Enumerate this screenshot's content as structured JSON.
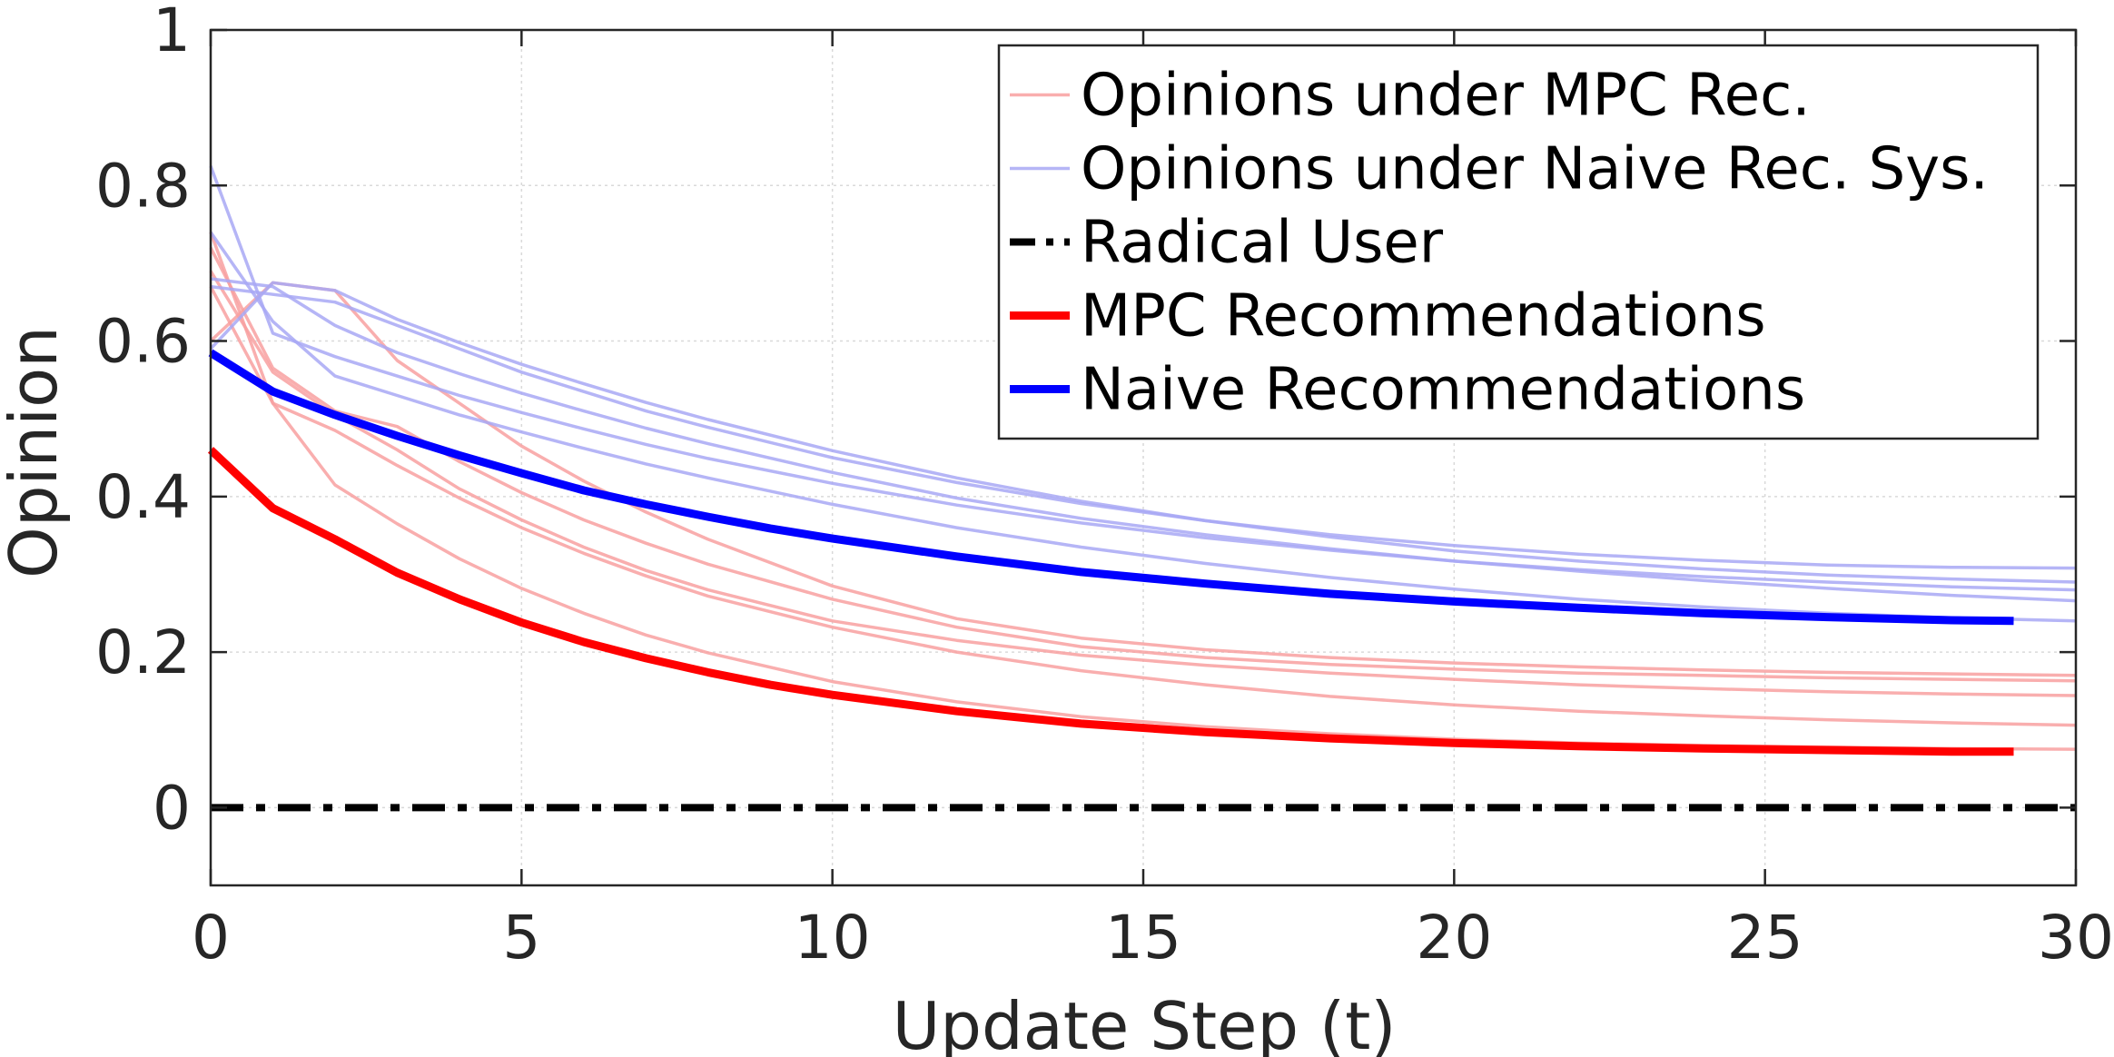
{
  "chart_data": {
    "type": "line",
    "title": "",
    "xlabel": "Update Step (t)",
    "ylabel": "Opinion",
    "xlim": [
      0,
      30
    ],
    "ylim": [
      -0.1,
      1.0
    ],
    "xticks": [
      0,
      5,
      10,
      15,
      20,
      25,
      30
    ],
    "yticks": [
      0,
      0.2,
      0.4,
      0.6,
      0.8,
      1
    ],
    "xtick_labels": [
      "0",
      "5",
      "10",
      "15",
      "20",
      "25",
      "30"
    ],
    "ytick_labels": [
      "0",
      "0.2",
      "0.4",
      "0.6",
      "0.8",
      "1"
    ],
    "grid": true,
    "legend_position": "top-right",
    "legend": [
      {
        "label": "Opinions under MPC Rec.",
        "color": "#f8a0a0",
        "style": "thin"
      },
      {
        "label": "Opinions under Naive Rec. Sys.",
        "color": "#a8a8f4",
        "style": "thin"
      },
      {
        "label": "Radical User",
        "color": "#000000",
        "style": "dashdot"
      },
      {
        "label": "MPC Recommendations",
        "color": "#ff0000",
        "style": "thick"
      },
      {
        "label": "Naive Recommendations",
        "color": "#0000ff",
        "style": "thick"
      }
    ],
    "radical_user": {
      "value": 0,
      "x_range": [
        0,
        30
      ],
      "color": "#000000"
    },
    "mpc_recommendations": {
      "color": "#ff0000",
      "x": [
        0,
        1,
        2,
        3,
        4,
        5,
        6,
        7,
        8,
        9,
        10,
        12,
        14,
        16,
        18,
        20,
        22,
        24,
        26,
        28,
        29
      ],
      "y": [
        0.46,
        0.385,
        0.345,
        0.302,
        0.268,
        0.238,
        0.213,
        0.192,
        0.174,
        0.158,
        0.145,
        0.124,
        0.108,
        0.097,
        0.089,
        0.083,
        0.079,
        0.076,
        0.074,
        0.072,
        0.072
      ]
    },
    "naive_recommendations": {
      "color": "#0000ff",
      "x": [
        0,
        1,
        2,
        3,
        4,
        5,
        6,
        7,
        8,
        9,
        10,
        12,
        14,
        16,
        18,
        20,
        22,
        24,
        26,
        28,
        29
      ],
      "y": [
        0.585,
        0.535,
        0.505,
        0.478,
        0.453,
        0.43,
        0.408,
        0.39,
        0.374,
        0.359,
        0.346,
        0.323,
        0.303,
        0.288,
        0.275,
        0.265,
        0.257,
        0.25,
        0.245,
        0.241,
        0.24
      ]
    },
    "mpc_opinions": {
      "color": "#f8a0a0",
      "x": [
        0,
        1,
        2,
        3,
        4,
        5,
        6,
        7,
        8,
        10,
        12,
        14,
        16,
        18,
        20,
        22,
        24,
        26,
        28,
        30
      ],
      "series": [
        [
          0.74,
          0.52,
          0.415,
          0.365,
          0.32,
          0.282,
          0.25,
          0.222,
          0.199,
          0.162,
          0.136,
          0.117,
          0.104,
          0.095,
          0.088,
          0.083,
          0.08,
          0.078,
          0.076,
          0.075
        ],
        [
          0.67,
          0.52,
          0.485,
          0.44,
          0.398,
          0.36,
          0.327,
          0.298,
          0.272,
          0.232,
          0.2,
          0.176,
          0.158,
          0.143,
          0.132,
          0.124,
          0.118,
          0.113,
          0.109,
          0.106
        ],
        [
          0.69,
          0.56,
          0.505,
          0.46,
          0.41,
          0.37,
          0.335,
          0.305,
          0.28,
          0.24,
          0.215,
          0.196,
          0.183,
          0.173,
          0.165,
          0.158,
          0.153,
          0.149,
          0.146,
          0.144
        ],
        [
          0.72,
          0.565,
          0.51,
          0.49,
          0.445,
          0.405,
          0.37,
          0.34,
          0.313,
          0.268,
          0.232,
          0.207,
          0.193,
          0.184,
          0.178,
          0.173,
          0.17,
          0.167,
          0.165,
          0.163
        ],
        [
          0.6,
          0.675,
          0.665,
          0.575,
          0.52,
          0.465,
          0.42,
          0.38,
          0.345,
          0.285,
          0.243,
          0.218,
          0.203,
          0.193,
          0.186,
          0.181,
          0.177,
          0.174,
          0.172,
          0.17
        ]
      ]
    },
    "naive_opinions": {
      "color": "#a8a8f4",
      "x": [
        0,
        1,
        2,
        3,
        4,
        5,
        6,
        7,
        8,
        10,
        12,
        14,
        16,
        18,
        20,
        22,
        24,
        26,
        28,
        30
      ],
      "series": [
        [
          0.825,
          0.61,
          0.58,
          0.555,
          0.53,
          0.508,
          0.487,
          0.467,
          0.449,
          0.417,
          0.389,
          0.366,
          0.347,
          0.331,
          0.317,
          0.306,
          0.297,
          0.29,
          0.284,
          0.28
        ],
        [
          0.74,
          0.625,
          0.555,
          0.53,
          0.505,
          0.483,
          0.462,
          0.442,
          0.424,
          0.39,
          0.36,
          0.335,
          0.314,
          0.296,
          0.281,
          0.268,
          0.258,
          0.25,
          0.244,
          0.24
        ],
        [
          0.68,
          0.67,
          0.62,
          0.585,
          0.558,
          0.533,
          0.51,
          0.488,
          0.468,
          0.431,
          0.398,
          0.372,
          0.351,
          0.333,
          0.317,
          0.304,
          0.292,
          0.282,
          0.273,
          0.266
        ],
        [
          0.59,
          0.675,
          0.665,
          0.628,
          0.598,
          0.57,
          0.545,
          0.521,
          0.499,
          0.459,
          0.424,
          0.394,
          0.369,
          0.348,
          0.33,
          0.317,
          0.307,
          0.299,
          0.294,
          0.29
        ],
        [
          0.67,
          0.66,
          0.65,
          0.62,
          0.59,
          0.56,
          0.535,
          0.51,
          0.489,
          0.45,
          0.418,
          0.391,
          0.369,
          0.351,
          0.337,
          0.326,
          0.318,
          0.312,
          0.309,
          0.308
        ]
      ]
    }
  }
}
